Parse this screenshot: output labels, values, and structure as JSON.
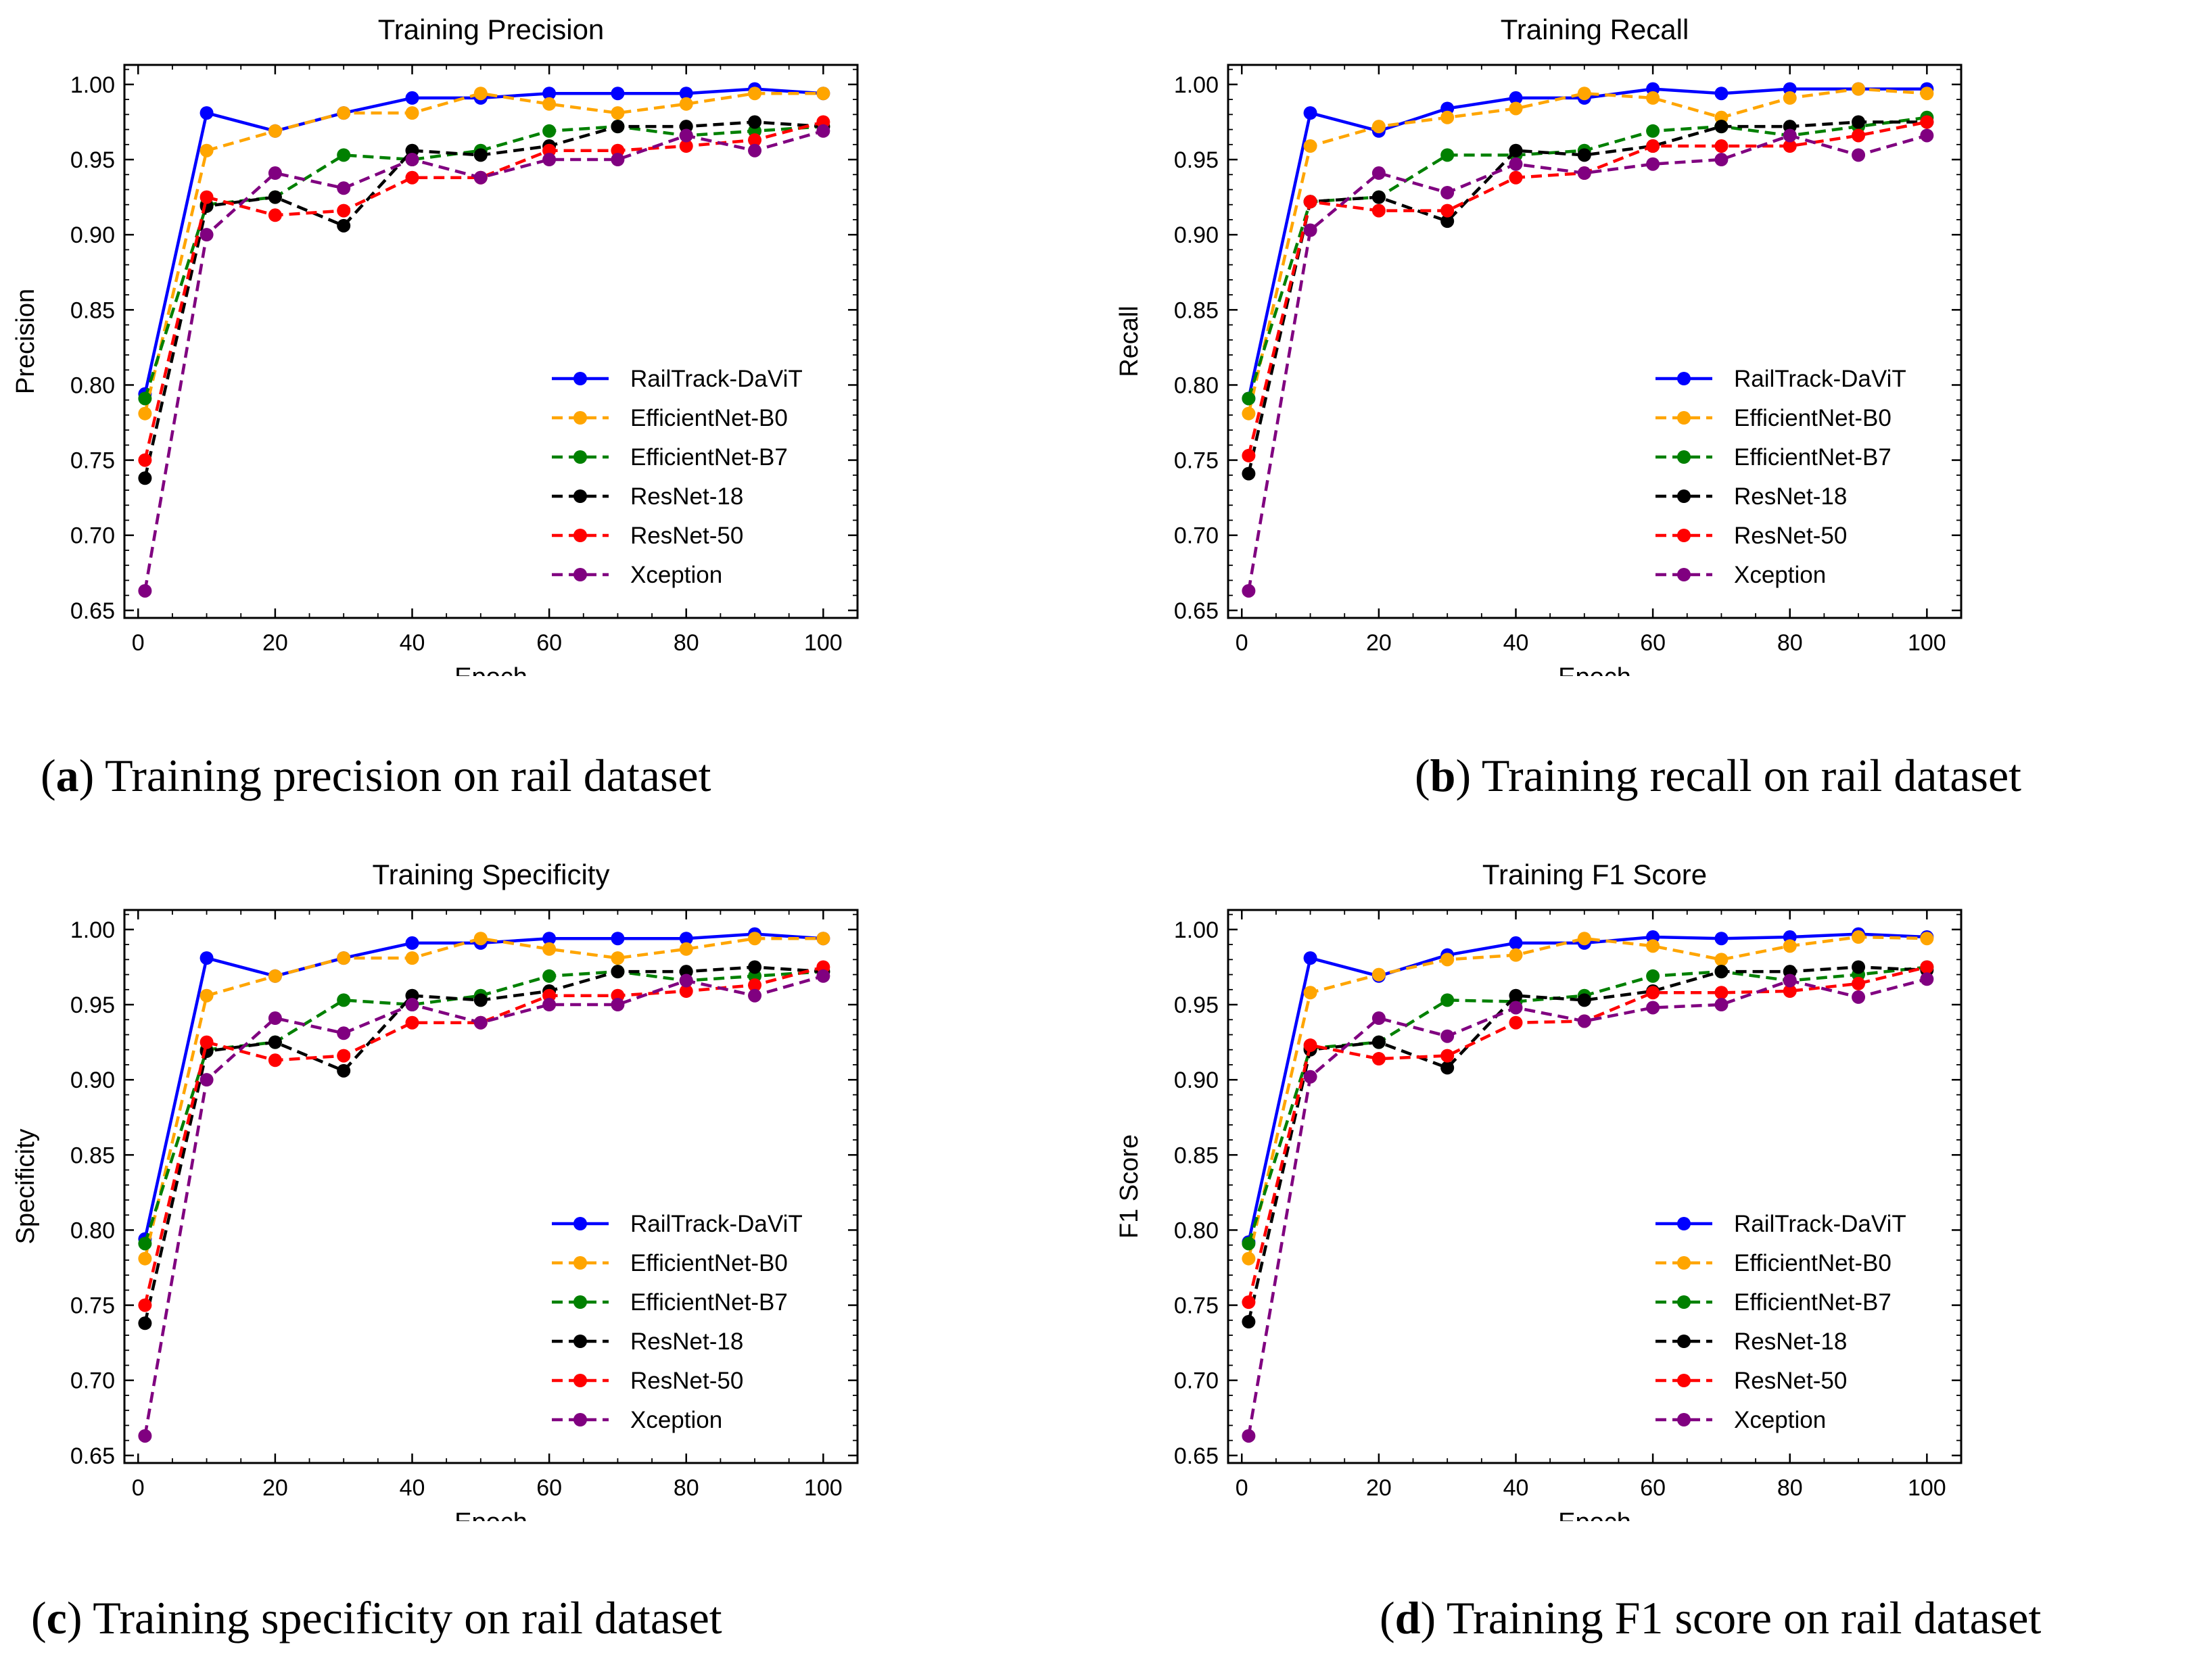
{
  "x_ticks": [
    0,
    20,
    40,
    60,
    80,
    100
  ],
  "y_ticks": [
    0.65,
    0.7,
    0.75,
    0.8,
    0.85,
    0.9,
    0.95,
    1.0
  ],
  "series_style": [
    {
      "name": "RailTrack-DaViT",
      "color": "#0000ff",
      "dashed": false
    },
    {
      "name": "EfficientNet-B0",
      "color": "#ffa500",
      "dashed": true
    },
    {
      "name": "EfficientNet-B7",
      "color": "#008000",
      "dashed": true
    },
    {
      "name": "ResNet-18",
      "color": "#000000",
      "dashed": true
    },
    {
      "name": "ResNet-50",
      "color": "#ff0000",
      "dashed": true
    },
    {
      "name": "Xception",
      "color": "#800080",
      "dashed": true
    }
  ],
  "chart_data": [
    {
      "type": "line",
      "title": "Training Precision",
      "xlabel": "Epoch",
      "ylabel": "Precision",
      "xlim": [
        -2,
        105
      ],
      "ylim": [
        0.645,
        1.013
      ],
      "legend": "center-right",
      "x": [
        1,
        10,
        20,
        30,
        40,
        50,
        60,
        70,
        80,
        90,
        100
      ],
      "series": [
        {
          "name": "RailTrack-DaViT",
          "values": [
            0.794,
            0.981,
            0.969,
            0.981,
            0.991,
            0.991,
            0.994,
            0.994,
            0.994,
            0.997,
            0.994
          ]
        },
        {
          "name": "EfficientNet-B0",
          "values": [
            0.781,
            0.956,
            0.969,
            0.981,
            0.981,
            0.994,
            0.987,
            0.981,
            0.987,
            0.994,
            0.994
          ]
        },
        {
          "name": "EfficientNet-B7",
          "values": [
            0.791,
            0.92,
            0.925,
            0.953,
            0.95,
            0.956,
            0.969,
            0.972,
            0.966,
            0.969,
            0.972
          ]
        },
        {
          "name": "ResNet-18",
          "values": [
            0.738,
            0.919,
            0.925,
            0.906,
            0.956,
            0.953,
            0.959,
            0.972,
            0.972,
            0.975,
            0.972
          ]
        },
        {
          "name": "ResNet-50",
          "values": [
            0.75,
            0.925,
            0.913,
            0.916,
            0.938,
            0.938,
            0.956,
            0.956,
            0.959,
            0.963,
            0.975
          ]
        },
        {
          "name": "Xception",
          "values": [
            0.663,
            0.9,
            0.941,
            0.931,
            0.95,
            0.938,
            0.95,
            0.95,
            0.966,
            0.956,
            0.969
          ]
        }
      ]
    },
    {
      "type": "line",
      "title": "Training Recall",
      "xlabel": "Epoch",
      "ylabel": "Recall",
      "xlim": [
        -2,
        105
      ],
      "ylim": [
        0.645,
        1.013
      ],
      "legend": "center-right",
      "x": [
        1,
        10,
        20,
        30,
        40,
        50,
        60,
        70,
        80,
        90,
        100
      ],
      "series": [
        {
          "name": "RailTrack-DaViT",
          "values": [
            0.791,
            0.981,
            0.969,
            0.984,
            0.991,
            0.991,
            0.997,
            0.994,
            0.997,
            0.997,
            0.997
          ]
        },
        {
          "name": "EfficientNet-B0",
          "values": [
            0.781,
            0.959,
            0.972,
            0.978,
            0.984,
            0.994,
            0.991,
            0.978,
            0.991,
            0.997,
            0.994
          ]
        },
        {
          "name": "EfficientNet-B7",
          "values": [
            0.791,
            0.922,
            0.925,
            0.953,
            0.953,
            0.956,
            0.969,
            0.972,
            0.966,
            0.972,
            0.978
          ]
        },
        {
          "name": "ResNet-18",
          "values": [
            0.741,
            0.922,
            0.925,
            0.909,
            0.956,
            0.953,
            0.959,
            0.972,
            0.972,
            0.975,
            0.975
          ]
        },
        {
          "name": "ResNet-50",
          "values": [
            0.753,
            0.922,
            0.916,
            0.916,
            0.938,
            0.941,
            0.959,
            0.959,
            0.959,
            0.966,
            0.975
          ]
        },
        {
          "name": "Xception",
          "values": [
            0.663,
            0.903,
            0.941,
            0.928,
            0.947,
            0.941,
            0.947,
            0.95,
            0.966,
            0.953,
            0.966
          ]
        }
      ]
    },
    {
      "type": "line",
      "title": "Training Specificity",
      "xlabel": "Epoch",
      "ylabel": "Specificity",
      "xlim": [
        -2,
        105
      ],
      "ylim": [
        0.645,
        1.013
      ],
      "legend": "center-right",
      "x": [
        1,
        10,
        20,
        30,
        40,
        50,
        60,
        70,
        80,
        90,
        100
      ],
      "series": [
        {
          "name": "RailTrack-DaViT",
          "values": [
            0.794,
            0.981,
            0.969,
            0.981,
            0.991,
            0.991,
            0.994,
            0.994,
            0.994,
            0.997,
            0.994
          ]
        },
        {
          "name": "EfficientNet-B0",
          "values": [
            0.781,
            0.956,
            0.969,
            0.981,
            0.981,
            0.994,
            0.987,
            0.981,
            0.987,
            0.994,
            0.994
          ]
        },
        {
          "name": "EfficientNet-B7",
          "values": [
            0.791,
            0.92,
            0.925,
            0.953,
            0.95,
            0.956,
            0.969,
            0.972,
            0.966,
            0.969,
            0.972
          ]
        },
        {
          "name": "ResNet-18",
          "values": [
            0.738,
            0.919,
            0.925,
            0.906,
            0.956,
            0.953,
            0.959,
            0.972,
            0.972,
            0.975,
            0.972
          ]
        },
        {
          "name": "ResNet-50",
          "values": [
            0.75,
            0.925,
            0.913,
            0.916,
            0.938,
            0.938,
            0.956,
            0.956,
            0.959,
            0.963,
            0.975
          ]
        },
        {
          "name": "Xception",
          "values": [
            0.663,
            0.9,
            0.941,
            0.931,
            0.95,
            0.938,
            0.95,
            0.95,
            0.966,
            0.956,
            0.969
          ]
        }
      ]
    },
    {
      "type": "line",
      "title": "Training F1 Score",
      "xlabel": "Epoch",
      "ylabel": "F1 Score",
      "xlim": [
        -2,
        105
      ],
      "ylim": [
        0.645,
        1.013
      ],
      "legend": "center-right",
      "x": [
        1,
        10,
        20,
        30,
        40,
        50,
        60,
        70,
        80,
        90,
        100
      ],
      "series": [
        {
          "name": "RailTrack-DaViT",
          "values": [
            0.792,
            0.981,
            0.969,
            0.983,
            0.991,
            0.991,
            0.995,
            0.994,
            0.995,
            0.997,
            0.995
          ]
        },
        {
          "name": "EfficientNet-B0",
          "values": [
            0.781,
            0.958,
            0.97,
            0.98,
            0.983,
            0.994,
            0.989,
            0.98,
            0.989,
            0.995,
            0.994
          ]
        },
        {
          "name": "EfficientNet-B7",
          "values": [
            0.791,
            0.921,
            0.925,
            0.953,
            0.952,
            0.956,
            0.969,
            0.972,
            0.966,
            0.97,
            0.975
          ]
        },
        {
          "name": "ResNet-18",
          "values": [
            0.739,
            0.92,
            0.925,
            0.908,
            0.956,
            0.953,
            0.959,
            0.972,
            0.972,
            0.975,
            0.973
          ]
        },
        {
          "name": "ResNet-50",
          "values": [
            0.752,
            0.923,
            0.914,
            0.916,
            0.938,
            0.939,
            0.958,
            0.958,
            0.959,
            0.964,
            0.975
          ]
        },
        {
          "name": "Xception",
          "values": [
            0.663,
            0.902,
            0.941,
            0.929,
            0.948,
            0.939,
            0.948,
            0.95,
            0.966,
            0.955,
            0.967
          ]
        }
      ]
    }
  ],
  "captions": [
    {
      "letter": "a",
      "text": "Training precision on rail dataset"
    },
    {
      "letter": "b",
      "text": "Training recall on rail dataset"
    },
    {
      "letter": "c",
      "text": "Training specificity on rail dataset"
    },
    {
      "letter": "d",
      "text": "Training F1 score on rail dataset"
    }
  ]
}
